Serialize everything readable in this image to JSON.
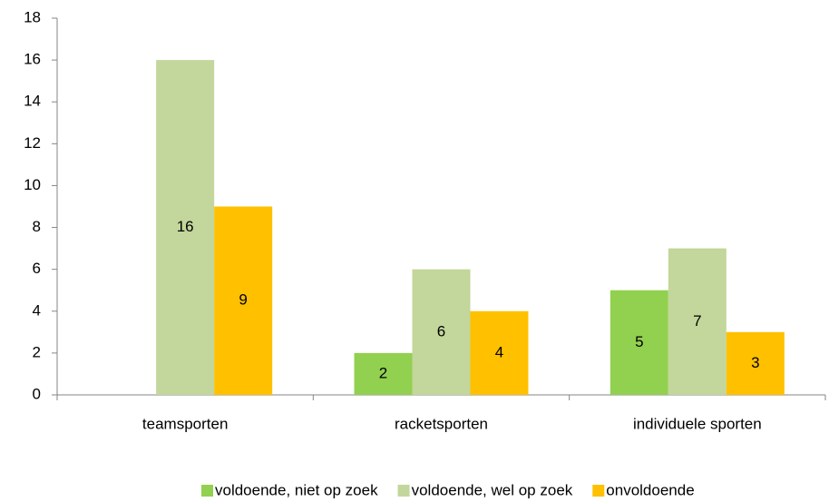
{
  "chart_data": {
    "type": "bar",
    "categories": [
      "teamsporten",
      "racketsporten",
      "individuele sporten"
    ],
    "series": [
      {
        "name": "voldoende, niet op zoek",
        "color": "#92d050",
        "values": [
          null,
          2,
          5
        ]
      },
      {
        "name": "voldoende, wel op zoek",
        "color": "#c3d69b",
        "values": [
          16,
          6,
          7
        ]
      },
      {
        "name": "onvoldoende",
        "color": "#ffc000",
        "values": [
          9,
          4,
          3
        ]
      }
    ],
    "ylim": [
      0,
      18
    ],
    "yticks": [
      0,
      2,
      4,
      6,
      8,
      10,
      12,
      14,
      16,
      18
    ],
    "grid": false,
    "legend": "bottom"
  }
}
